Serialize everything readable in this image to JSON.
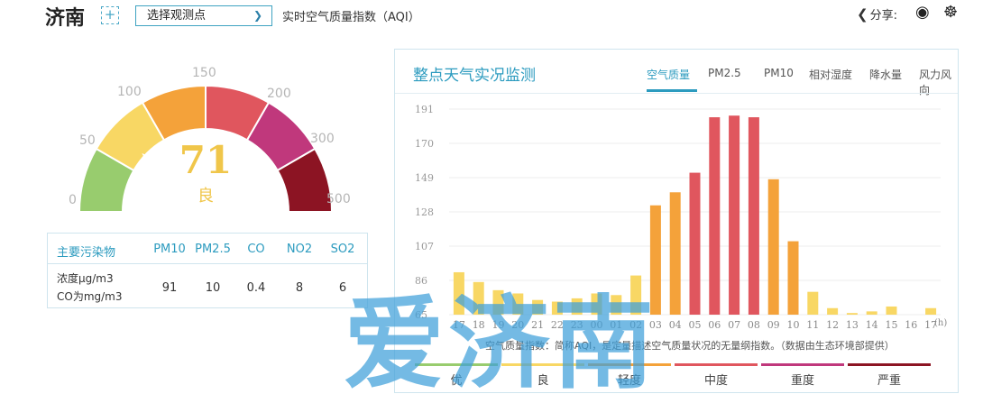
{
  "header": {
    "city": "济南",
    "add_symbol": "+",
    "station_select": "选择观测点",
    "aqi_title": "实时空气质量指数（AQI）",
    "share_label": "分享:",
    "icons": [
      "share-icon",
      "weibo-icon",
      "wechat-icon"
    ]
  },
  "gauge": {
    "value": "71",
    "level": "良",
    "ticks": [
      "0",
      "50",
      "100",
      "150",
      "200",
      "300",
      "500"
    ],
    "colors": [
      "#98cc6e",
      "#f8d764",
      "#f4a23a",
      "#e0565e",
      "#c0387c",
      "#8c1423"
    ]
  },
  "pollutants": {
    "header": [
      "主要污染物",
      "PM10",
      "PM2.5",
      "CO",
      "NO2",
      "SO2"
    ],
    "unit_line1": "浓度μg/m3",
    "unit_line2": "CO为mg/m3",
    "values": [
      "91",
      "10",
      "0.4",
      "8",
      "6"
    ]
  },
  "panel": {
    "title": "整点天气实况监测",
    "tabs": [
      "空气质量",
      "PM2.5",
      "PM10",
      "相对湿度",
      "降水量",
      "风力风向"
    ],
    "active_tab": "空气质量",
    "note": "空气质量指数：简称AQI，是定量描述空气质量状况的无量纲指数。（数据由生态环境部提供）",
    "legend": [
      {
        "label": "优",
        "color": "#98cc6e"
      },
      {
        "label": "良",
        "color": "#f8d764"
      },
      {
        "label": "轻度",
        "color": "#f4a23a"
      },
      {
        "label": "中度",
        "color": "#e0565e"
      },
      {
        "label": "重度",
        "color": "#c0387c"
      },
      {
        "label": "严重",
        "color": "#8c1423"
      }
    ]
  },
  "chart_data": {
    "type": "bar",
    "categories": [
      "17",
      "18",
      "19",
      "20",
      "21",
      "22",
      "23",
      "00",
      "01",
      "02",
      "03",
      "04",
      "05",
      "06",
      "07",
      "08",
      "09",
      "10",
      "11",
      "12",
      "13",
      "14",
      "15",
      "16",
      "17"
    ],
    "values": [
      91,
      85,
      80,
      78,
      74,
      73,
      75,
      78,
      77,
      89,
      132,
      140,
      152,
      186,
      187,
      186,
      148,
      110,
      79,
      69,
      66,
      67,
      70,
      65,
      69
    ],
    "xlabel": "(h)",
    "ylabel": "",
    "yticks": [
      "191",
      "170",
      "149",
      "128",
      "107",
      "86",
      "65"
    ],
    "ylim": [
      65,
      191
    ]
  },
  "watermark": "爱济南"
}
